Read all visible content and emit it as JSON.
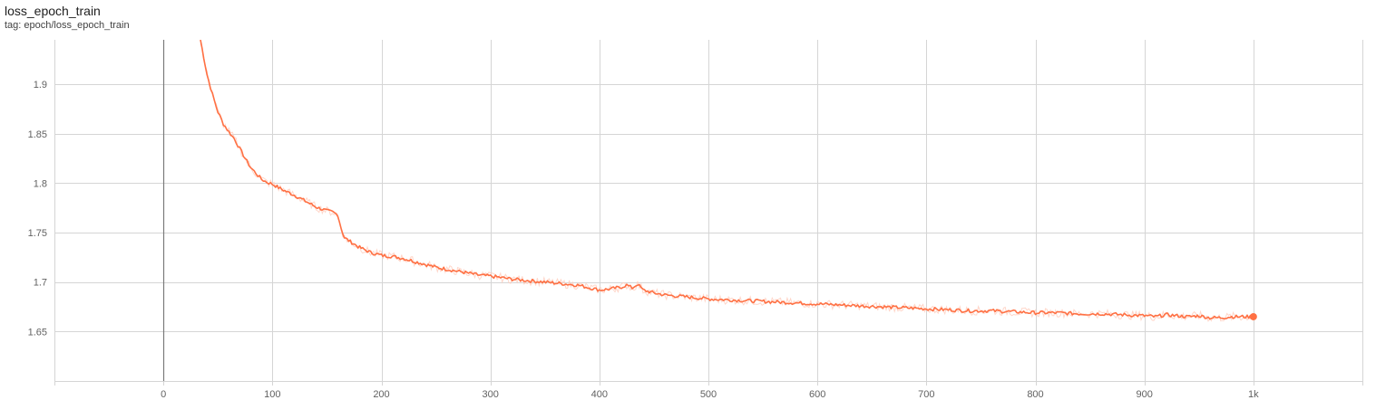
{
  "card": {
    "title": "loss_epoch_train",
    "tag": "tag: epoch/loss_epoch_train"
  },
  "colors": {
    "series": "#ff7043",
    "series_raw": "#ffccbc",
    "grid": "#d5d5d5",
    "zero_axis": "#7a7a7a",
    "tick_text": "#616161"
  },
  "chart_data": {
    "type": "line",
    "title": "loss_epoch_train",
    "xlabel": "",
    "ylabel": "",
    "xlim": [
      -100,
      1100
    ],
    "ylim": [
      1.6,
      1.945
    ],
    "x_ticks": [
      0,
      100,
      200,
      300,
      400,
      500,
      600,
      700,
      800,
      900,
      1000
    ],
    "x_tick_labels": [
      "0",
      "100",
      "200",
      "300",
      "400",
      "500",
      "600",
      "700",
      "800",
      "900",
      "1k"
    ],
    "y_ticks": [
      1.65,
      1.7,
      1.75,
      1.8,
      1.85,
      1.9
    ],
    "y_tick_labels": [
      "1.65",
      "1.7",
      "1.75",
      "1.8",
      "1.85",
      "1.9"
    ],
    "grid": true,
    "series": [
      {
        "x": [
          34,
          40,
          45,
          50,
          55,
          60,
          65,
          70,
          75,
          80,
          85,
          90,
          95,
          100,
          110,
          120,
          130,
          140,
          150,
          155,
          160,
          163,
          166,
          170,
          180,
          190,
          200,
          210,
          220,
          230,
          240,
          250,
          260,
          270,
          280,
          290,
          300,
          320,
          340,
          360,
          380,
          400,
          410,
          420,
          425,
          430,
          435,
          440,
          450,
          460,
          480,
          500,
          520,
          540,
          560,
          580,
          600,
          620,
          640,
          660,
          680,
          700,
          720,
          740,
          760,
          780,
          800,
          820,
          840,
          860,
          880,
          900,
          910,
          920,
          930,
          940,
          950,
          960,
          970,
          980,
          990,
          1000
        ],
        "y": [
          1.945,
          1.91,
          1.89,
          1.872,
          1.86,
          1.852,
          1.845,
          1.835,
          1.825,
          1.816,
          1.81,
          1.804,
          1.801,
          1.799,
          1.793,
          1.788,
          1.782,
          1.776,
          1.772,
          1.771,
          1.768,
          1.755,
          1.745,
          1.742,
          1.735,
          1.73,
          1.727,
          1.726,
          1.724,
          1.721,
          1.718,
          1.715,
          1.713,
          1.711,
          1.709,
          1.707,
          1.706,
          1.703,
          1.701,
          1.699,
          1.697,
          1.692,
          1.693,
          1.695,
          1.697,
          1.694,
          1.698,
          1.692,
          1.689,
          1.687,
          1.685,
          1.683,
          1.682,
          1.681,
          1.68,
          1.679,
          1.678,
          1.677,
          1.676,
          1.675,
          1.674,
          1.673,
          1.672,
          1.671,
          1.671,
          1.67,
          1.669,
          1.669,
          1.668,
          1.668,
          1.667,
          1.666,
          1.665,
          1.667,
          1.666,
          1.665,
          1.666,
          1.664,
          1.664,
          1.665,
          1.665,
          1.665
        ]
      }
    ]
  }
}
